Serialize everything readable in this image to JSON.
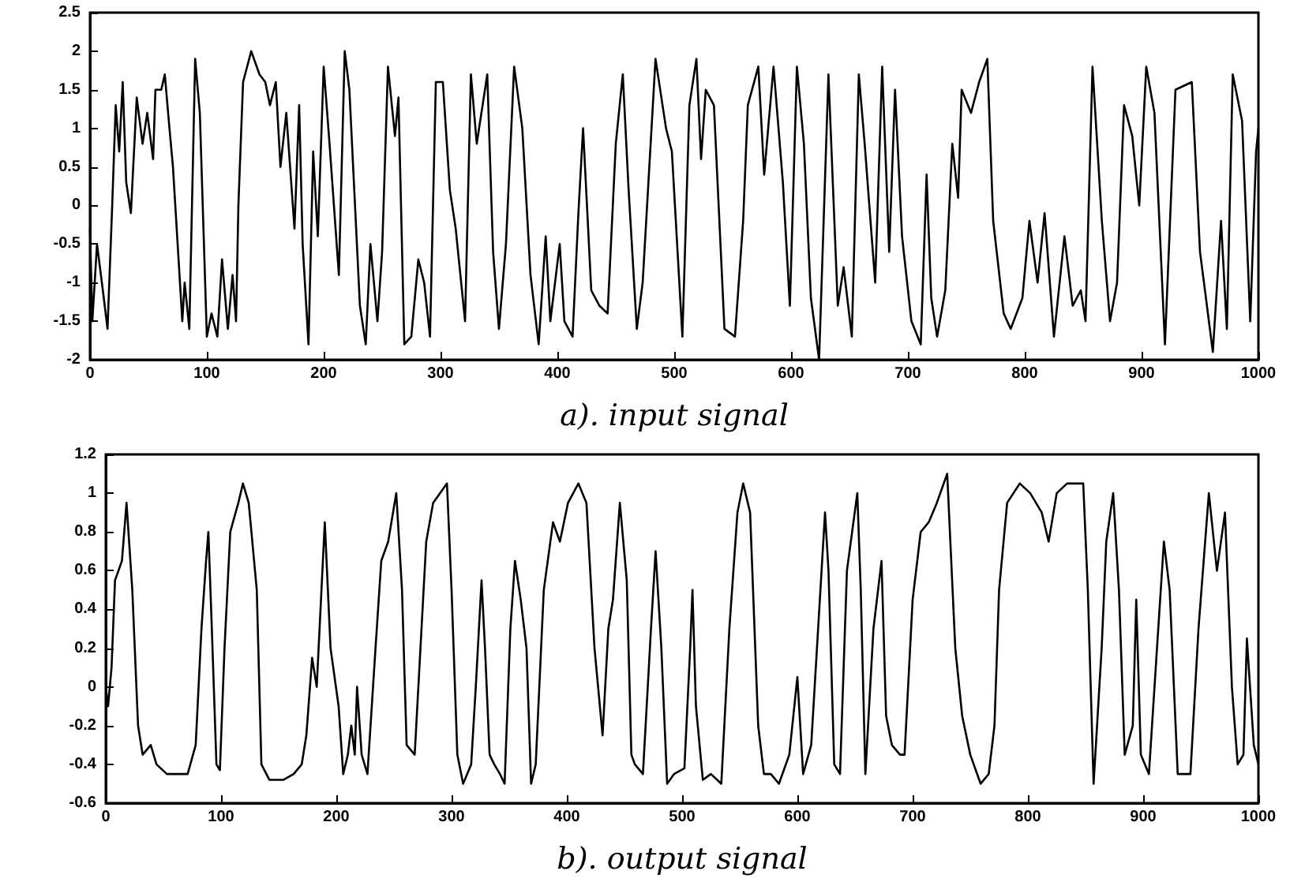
{
  "chart_data": [
    {
      "type": "line",
      "xlabel": "a). input signal",
      "color": "#000000",
      "x": [
        0,
        2,
        6,
        11,
        15,
        19,
        22,
        25,
        28,
        31,
        35,
        40,
        45,
        49,
        54,
        56,
        61,
        64,
        68,
        71,
        75,
        79,
        81,
        85,
        90,
        94,
        100,
        104,
        109,
        113,
        118,
        122,
        125,
        127,
        131,
        138,
        145,
        150,
        154,
        159,
        163,
        168,
        175,
        179,
        182,
        187,
        191,
        195,
        200,
        205,
        213,
        218,
        222,
        231,
        236,
        240,
        246,
        250,
        255,
        261,
        264,
        269,
        275,
        281,
        286,
        291,
        296,
        302,
        308,
        313,
        321,
        326,
        331,
        340,
        345,
        350,
        356,
        363,
        370,
        377,
        384,
        390,
        394,
        402,
        406,
        413,
        418,
        422,
        429,
        436,
        443,
        450,
        456,
        461,
        468,
        473,
        484,
        493,
        498,
        507,
        513,
        519,
        523,
        527,
        534,
        543,
        552,
        559,
        563,
        572,
        577,
        585,
        593,
        599,
        605,
        611,
        617,
        624,
        632,
        640,
        645,
        652,
        658,
        663,
        672,
        678,
        684,
        689,
        695,
        703,
        711,
        716,
        720,
        725,
        732,
        738,
        743,
        746,
        754,
        761,
        768,
        773,
        782,
        788,
        798,
        804,
        811,
        817,
        825,
        834,
        841,
        848,
        852,
        858,
        866,
        873,
        879,
        885,
        892,
        898,
        904,
        911,
        920,
        929,
        943,
        950,
        961,
        968,
        973,
        978,
        986,
        993,
        998,
        1000
      ],
      "values": [
        -0.3,
        -1.5,
        -0.5,
        -1.1,
        -1.6,
        0,
        1.3,
        0.7,
        1.6,
        0.3,
        -0.1,
        1.4,
        0.8,
        1.2,
        0.6,
        1.5,
        1.5,
        1.7,
        1.0,
        0.5,
        -0.5,
        -1.5,
        -1.0,
        -1.6,
        1.9,
        1.2,
        -1.7,
        -1.4,
        -1.7,
        -0.7,
        -1.6,
        -0.9,
        -1.5,
        0,
        1.6,
        2.0,
        1.7,
        1.6,
        1.3,
        1.6,
        0.5,
        1.2,
        -0.3,
        1.3,
        -0.5,
        -1.8,
        0.7,
        -0.4,
        1.8,
        0.8,
        -0.9,
        2.0,
        1.5,
        -1.3,
        -1.8,
        -0.5,
        -1.5,
        -0.6,
        1.8,
        0.9,
        1.4,
        -1.8,
        -1.7,
        -0.7,
        -1.0,
        -1.7,
        1.6,
        1.6,
        0.2,
        -0.3,
        -1.5,
        1.7,
        0.8,
        1.7,
        -0.6,
        -1.6,
        -0.5,
        1.8,
        1.0,
        -0.9,
        -1.8,
        -0.4,
        -1.5,
        -0.5,
        -1.5,
        -1.7,
        -0.1,
        1.0,
        -1.1,
        -1.3,
        -1.4,
        0.8,
        1.7,
        0.2,
        -1.6,
        -1.0,
        1.9,
        1.0,
        0.7,
        -1.7,
        1.3,
        1.9,
        0.6,
        1.5,
        1.3,
        -1.6,
        -1.7,
        -0.2,
        1.3,
        1.8,
        0.4,
        1.8,
        0.3,
        -1.3,
        1.8,
        0.8,
        -1.2,
        -2.0,
        1.7,
        -1.3,
        -0.8,
        -1.7,
        1.7,
        0.8,
        -1.0,
        1.8,
        -0.6,
        1.5,
        -0.4,
        -1.5,
        -1.8,
        0.4,
        -1.2,
        -1.7,
        -1.1,
        0.8,
        0.1,
        1.5,
        1.2,
        1.6,
        1.9,
        -0.2,
        -1.4,
        -1.6,
        -1.2,
        -0.2,
        -1.0,
        -0.1,
        -1.7,
        -0.4,
        -1.3,
        -1.1,
        -1.5,
        1.8,
        -0.2,
        -1.5,
        -1.0,
        1.3,
        0.9,
        0.0,
        1.8,
        1.2,
        -1.8,
        1.5,
        1.6,
        -0.6,
        -1.9,
        -0.2,
        -1.6,
        1.7,
        1.1,
        -1.5,
        0.7,
        1.0
      ],
      "xlim": [
        0,
        1000
      ],
      "xticks": [
        0,
        100,
        200,
        300,
        400,
        500,
        600,
        700,
        800,
        900,
        1000
      ],
      "ylim": [
        -2,
        2.5
      ],
      "yticks": [
        -2,
        -1.5,
        -1,
        -0.5,
        0,
        0.5,
        1,
        1.5,
        2,
        2.5
      ]
    },
    {
      "type": "line",
      "xlabel": "b). output signal",
      "color": "#000000",
      "x": [
        0,
        2,
        5,
        8,
        14,
        18,
        23,
        28,
        32,
        39,
        44,
        53,
        62,
        71,
        78,
        83,
        87,
        89,
        92,
        96,
        99,
        103,
        108,
        115,
        119,
        124,
        131,
        135,
        142,
        154,
        163,
        170,
        174,
        179,
        183,
        190,
        195,
        202,
        206,
        210,
        213,
        216,
        218,
        222,
        227,
        234,
        239,
        245,
        252,
        257,
        261,
        268,
        273,
        278,
        284,
        296,
        300,
        305,
        310,
        317,
        321,
        326,
        329,
        333,
        337,
        342,
        346,
        351,
        355,
        360,
        365,
        369,
        373,
        380,
        388,
        394,
        401,
        410,
        417,
        424,
        431,
        436,
        440,
        446,
        452,
        456,
        459,
        466,
        473,
        477,
        482,
        487,
        493,
        502,
        507,
        509,
        512,
        518,
        525,
        534,
        541,
        548,
        553,
        559,
        566,
        571,
        577,
        584,
        593,
        600,
        605,
        612,
        618,
        624,
        627,
        632,
        637,
        643,
        652,
        655,
        659,
        666,
        673,
        677,
        682,
        689,
        693,
        700,
        707,
        714,
        721,
        730,
        737,
        743,
        750,
        759,
        766,
        771,
        775,
        782,
        793,
        802,
        812,
        818,
        825,
        834,
        848,
        852,
        857,
        864,
        868,
        874,
        879,
        884,
        891,
        894,
        898,
        905,
        912,
        918,
        923,
        930,
        934,
        941,
        948,
        957,
        964,
        971,
        977,
        982,
        987,
        990,
        996,
        1000
      ],
      "values": [
        0,
        -0.1,
        0.1,
        0.55,
        0.65,
        0.95,
        0.5,
        -0.2,
        -0.35,
        -0.3,
        -0.4,
        -0.45,
        -0.45,
        -0.45,
        -0.3,
        0.3,
        0.65,
        0.8,
        0.3,
        -0.4,
        -0.43,
        0.2,
        0.8,
        0.95,
        1.05,
        0.95,
        0.5,
        -0.4,
        -0.48,
        -0.48,
        -0.45,
        -0.4,
        -0.25,
        0.15,
        0.0,
        0.85,
        0.2,
        -0.1,
        -0.45,
        -0.35,
        -0.2,
        -0.35,
        0.0,
        -0.35,
        -0.45,
        0.2,
        0.65,
        0.75,
        1.0,
        0.5,
        -0.3,
        -0.35,
        0.2,
        0.75,
        0.95,
        1.05,
        0.5,
        -0.35,
        -0.5,
        -0.4,
        0.0,
        0.55,
        0.2,
        -0.35,
        -0.4,
        -0.45,
        -0.5,
        0.3,
        0.65,
        0.45,
        0.2,
        -0.5,
        -0.4,
        0.5,
        0.85,
        0.75,
        0.95,
        1.05,
        0.95,
        0.2,
        -0.25,
        0.3,
        0.45,
        0.95,
        0.55,
        -0.35,
        -0.4,
        -0.45,
        0.3,
        0.7,
        0.2,
        -0.5,
        -0.45,
        -0.42,
        0.2,
        0.5,
        -0.1,
        -0.48,
        -0.45,
        -0.5,
        0.3,
        0.9,
        1.05,
        0.9,
        -0.2,
        -0.45,
        -0.45,
        -0.5,
        -0.35,
        0.05,
        -0.45,
        -0.3,
        0.3,
        0.9,
        0.6,
        -0.4,
        -0.45,
        0.6,
        1.0,
        0.5,
        -0.45,
        0.3,
        0.65,
        -0.15,
        -0.3,
        -0.35,
        -0.35,
        0.45,
        0.8,
        0.85,
        0.95,
        1.1,
        0.2,
        -0.15,
        -0.35,
        -0.5,
        -0.45,
        -0.2,
        0.5,
        0.95,
        1.05,
        1.0,
        0.9,
        0.75,
        1.0,
        1.05,
        1.05,
        0.5,
        -0.5,
        0.2,
        0.75,
        1.0,
        0.5,
        -0.35,
        -0.2,
        0.45,
        -0.35,
        -0.45,
        0.2,
        0.75,
        0.5,
        -0.45,
        -0.45,
        -0.45,
        0.3,
        1.0,
        0.6,
        0.9,
        0.0,
        -0.4,
        -0.35,
        0.25,
        -0.3,
        -0.4
      ],
      "xlim": [
        0,
        1000
      ],
      "xticks": [
        0,
        100,
        200,
        300,
        400,
        500,
        600,
        700,
        800,
        900,
        1000
      ],
      "ylim": [
        -0.6,
        1.2
      ],
      "yticks": [
        -0.6,
        -0.4,
        -0.2,
        0,
        0.2,
        0.4,
        0.6,
        0.8,
        1,
        1.2
      ]
    }
  ]
}
